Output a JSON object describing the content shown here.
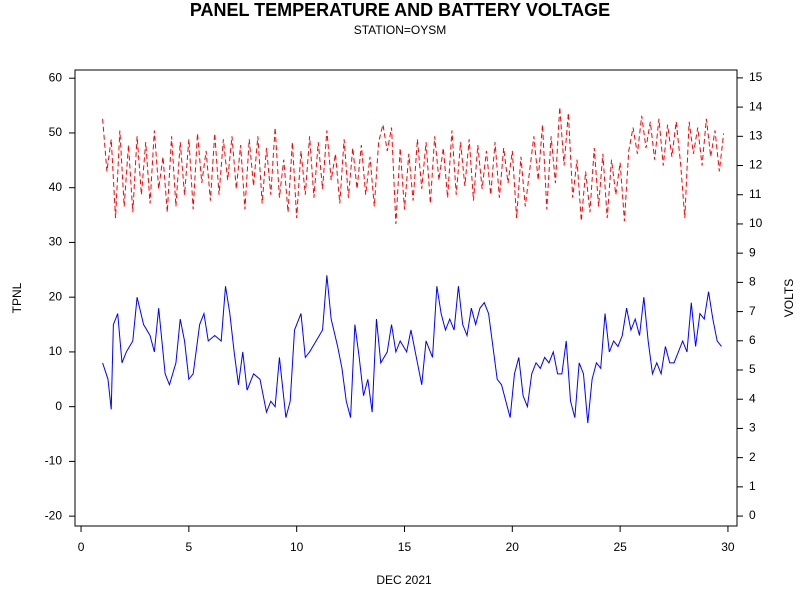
{
  "chart_data": {
    "type": "line",
    "title": "PANEL TEMPERATURE AND BATTERY VOLTAGE",
    "subtitle": "STATION=OYSM",
    "x_label": "DEC 2021",
    "y_label": "TPNL",
    "y2_label": "VOLTS",
    "xlim": [
      -0.28,
      30.42
    ],
    "xticks": [
      0,
      5,
      10,
      15,
      20,
      25,
      30
    ],
    "ylim": [
      -21.8,
      61.5
    ],
    "yticks": [
      -20,
      -10,
      0,
      10,
      20,
      30,
      40,
      50,
      60
    ],
    "y2lim": [
      -0.34,
      15.27
    ],
    "y2ticks": [
      0,
      1,
      2,
      3,
      4,
      5,
      6,
      7,
      8,
      9,
      10,
      11,
      12,
      13,
      14,
      15
    ],
    "series": [
      {
        "name": "TPNL",
        "color": "#0000ff",
        "linestyle": "solid",
        "x": [
          1.0,
          1.25,
          1.4,
          1.5,
          1.7,
          1.9,
          2.1,
          2.4,
          2.6,
          2.9,
          3.2,
          3.4,
          3.6,
          3.9,
          4.1,
          4.4,
          4.6,
          4.8,
          5.0,
          5.2,
          5.5,
          5.7,
          5.9,
          6.2,
          6.5,
          6.7,
          6.9,
          7.1,
          7.3,
          7.5,
          7.7,
          8.0,
          8.3,
          8.6,
          8.8,
          9.0,
          9.2,
          9.5,
          9.7,
          9.9,
          10.2,
          10.4,
          10.6,
          10.9,
          11.2,
          11.4,
          11.6,
          11.9,
          12.1,
          12.3,
          12.5,
          12.7,
          12.9,
          13.1,
          13.3,
          13.5,
          13.7,
          13.9,
          14.2,
          14.4,
          14.6,
          14.8,
          15.1,
          15.3,
          15.5,
          15.8,
          16.0,
          16.3,
          16.5,
          16.7,
          16.9,
          17.1,
          17.3,
          17.5,
          17.7,
          17.9,
          18.1,
          18.3,
          18.5,
          18.7,
          18.9,
          19.1,
          19.3,
          19.5,
          19.7,
          19.9,
          20.1,
          20.3,
          20.5,
          20.7,
          20.9,
          21.1,
          21.3,
          21.5,
          21.7,
          21.9,
          22.1,
          22.3,
          22.5,
          22.7,
          22.9,
          23.1,
          23.3,
          23.5,
          23.7,
          23.9,
          24.1,
          24.3,
          24.5,
          24.7,
          24.9,
          25.1,
          25.3,
          25.5,
          25.7,
          25.9,
          26.1,
          26.3,
          26.5,
          26.7,
          26.9,
          27.1,
          27.3,
          27.5,
          27.7,
          27.9,
          28.1,
          28.3,
          28.5,
          28.7,
          28.9,
          29.1,
          29.3,
          29.5,
          29.7
        ],
        "values": [
          8,
          5,
          -0.5,
          15,
          17,
          8,
          10,
          12,
          20,
          15,
          13,
          10,
          18,
          6,
          4,
          8,
          16,
          12,
          5,
          6,
          15,
          17,
          12,
          13,
          12,
          22,
          17,
          10,
          4,
          10,
          3,
          6,
          5,
          -1,
          1,
          0,
          9,
          -2,
          1,
          14,
          17,
          9,
          10,
          12,
          14,
          24,
          16,
          11,
          7,
          1,
          -2,
          15,
          9,
          2,
          5,
          -1,
          16,
          8,
          10,
          15,
          10,
          12,
          10,
          14,
          10,
          4,
          12,
          9,
          22,
          17,
          14,
          16,
          14,
          22,
          15,
          13,
          18,
          15,
          18,
          19,
          17,
          11,
          5,
          4,
          1,
          -2,
          6,
          9,
          2,
          0,
          6,
          8,
          7,
          9,
          8,
          10,
          6,
          6,
          12,
          1,
          -2,
          8,
          6,
          -3,
          5,
          8,
          7,
          17,
          10,
          12,
          11,
          13,
          18,
          14,
          16,
          13,
          20,
          12,
          6,
          8,
          6,
          11,
          8,
          8,
          10,
          12,
          10,
          19,
          11,
          17,
          16,
          21,
          16,
          12,
          11
        ]
      },
      {
        "name": "VOLTS",
        "color": "#ff0000",
        "linestyle": "dashed",
        "axis": "y2",
        "x": [
          1.0,
          1.2,
          1.4,
          1.6,
          1.8,
          2.0,
          2.2,
          2.4,
          2.6,
          2.8,
          3.0,
          3.2,
          3.4,
          3.6,
          3.8,
          4.0,
          4.2,
          4.4,
          4.6,
          4.8,
          5.0,
          5.2,
          5.4,
          5.6,
          5.8,
          6.0,
          6.2,
          6.4,
          6.6,
          6.8,
          7.0,
          7.2,
          7.4,
          7.6,
          7.8,
          8.0,
          8.2,
          8.4,
          8.6,
          8.8,
          9.0,
          9.2,
          9.4,
          9.6,
          9.8,
          10.0,
          10.2,
          10.4,
          10.6,
          10.8,
          11.0,
          11.2,
          11.4,
          11.6,
          11.8,
          12.0,
          12.2,
          12.4,
          12.6,
          12.8,
          13.0,
          13.2,
          13.4,
          13.6,
          13.8,
          14.0,
          14.2,
          14.4,
          14.6,
          14.8,
          15.0,
          15.2,
          15.4,
          15.6,
          15.8,
          16.0,
          16.2,
          16.4,
          16.6,
          16.8,
          17.0,
          17.2,
          17.4,
          17.6,
          17.8,
          18.0,
          18.2,
          18.4,
          18.6,
          18.8,
          19.0,
          19.2,
          19.4,
          19.6,
          19.8,
          20.0,
          20.2,
          20.4,
          20.6,
          20.8,
          21.0,
          21.2,
          21.4,
          21.6,
          21.8,
          22.0,
          22.2,
          22.4,
          22.6,
          22.8,
          23.0,
          23.2,
          23.4,
          23.6,
          23.8,
          24.0,
          24.2,
          24.4,
          24.6,
          24.8,
          25.0,
          25.2,
          25.4,
          25.6,
          25.8,
          26.0,
          26.2,
          26.4,
          26.6,
          26.8,
          27.0,
          27.2,
          27.4,
          27.6,
          27.8,
          28.0,
          28.2,
          28.4,
          28.6,
          28.8,
          29.0,
          29.2,
          29.4,
          29.6,
          29.8
        ],
        "values": [
          13.6,
          11.8,
          12.9,
          10.2,
          13.2,
          10.6,
          12.7,
          10.4,
          13.0,
          11.0,
          12.8,
          10.7,
          13.2,
          11.2,
          12.3,
          10.4,
          13.0,
          10.6,
          12.8,
          11.0,
          12.9,
          10.5,
          13.1,
          11.4,
          12.5,
          10.8,
          13.1,
          11.0,
          12.9,
          11.5,
          13.0,
          11.2,
          12.7,
          10.5,
          12.9,
          11.3,
          13.0,
          10.7,
          12.6,
          11.0,
          13.3,
          10.9,
          12.2,
          10.4,
          12.8,
          10.2,
          12.5,
          11.0,
          13.0,
          10.9,
          12.8,
          11.2,
          13.2,
          11.5,
          12.4,
          10.7,
          12.9,
          10.9,
          12.6,
          11.2,
          12.7,
          11.0,
          12.3,
          10.6,
          12.8,
          13.4,
          12.5,
          13.3,
          10.0,
          12.6,
          10.5,
          12.4,
          10.8,
          12.9,
          11.2,
          12.8,
          10.7,
          13.0,
          11.5,
          12.6,
          10.9,
          13.2,
          11.0,
          12.8,
          11.3,
          12.9,
          10.8,
          12.7,
          11.2,
          12.5,
          11.0,
          12.8,
          10.9,
          12.6,
          11.4,
          12.5,
          10.2,
          12.3,
          10.6,
          11.8,
          13.0,
          11.5,
          13.4,
          10.5,
          13.0,
          11.4,
          14.0,
          12.0,
          13.8,
          10.9,
          12.2,
          10.1,
          11.8,
          10.4,
          12.6,
          10.6,
          12.4,
          10.2,
          12.2,
          11.0,
          12.1,
          10.1,
          12.5,
          13.3,
          12.4,
          13.7,
          12.6,
          13.5,
          12.2,
          13.6,
          12.0,
          13.4,
          12.3,
          13.5,
          12.1,
          10.2,
          13.5,
          12.4,
          13.3,
          12.0,
          13.6,
          12.3,
          13.2,
          11.8,
          13.1
        ]
      }
    ]
  }
}
